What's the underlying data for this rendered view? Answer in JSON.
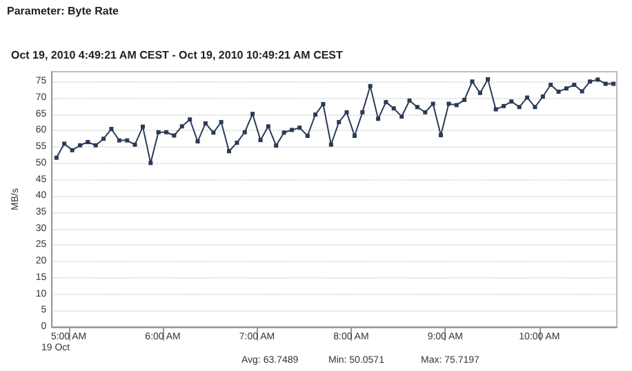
{
  "chart_data": {
    "type": "line",
    "title": "Oct 19, 2010 4:49:21 AM CEST - Oct 19, 2010 10:49:21 AM CEST",
    "subtitle": "Parameter: Byte Rate",
    "ylabel": "MB/s",
    "annotations": [
      "19 Oct",
      "Avg: 63.7489",
      "Min: 50.0571",
      "Max: 75.7197"
    ],
    "x": [
      4.87,
      4.953,
      5.037,
      5.12,
      5.203,
      5.287,
      5.37,
      5.453,
      5.537,
      5.62,
      5.703,
      5.787,
      5.87,
      5.953,
      6.037,
      6.12,
      6.203,
      6.287,
      6.37,
      6.453,
      6.537,
      6.62,
      6.703,
      6.787,
      6.87,
      6.953,
      7.037,
      7.12,
      7.203,
      7.287,
      7.37,
      7.453,
      7.537,
      7.62,
      7.703,
      7.787,
      7.87,
      7.953,
      8.037,
      8.12,
      8.203,
      8.287,
      8.37,
      8.453,
      8.537,
      8.62,
      8.703,
      8.787,
      8.87,
      8.953,
      9.037,
      9.12,
      9.203,
      9.287,
      9.37,
      9.453,
      9.537,
      9.62,
      9.703,
      9.787,
      9.87,
      9.953,
      10.037,
      10.12,
      10.203,
      10.287,
      10.37,
      10.453,
      10.537,
      10.62,
      10.703,
      10.787
    ],
    "series": [
      {
        "color": "#2b3a55",
        "values": [
          51.7,
          56.0,
          54.0,
          55.5,
          56.5,
          55.5,
          57.5,
          60.5,
          57.0,
          57.0,
          55.7,
          61.2,
          50.1,
          59.5,
          59.5,
          58.5,
          61.3,
          63.4,
          56.7,
          62.2,
          59.4,
          62.6,
          53.7,
          56.3,
          59.5,
          65.1,
          57.1,
          61.3,
          55.4,
          59.4,
          60.2,
          60.9,
          58.4,
          64.9,
          68.1,
          55.7,
          62.6,
          65.6,
          58.4,
          65.6,
          73.6,
          63.6,
          68.7,
          66.8,
          64.3,
          69.2,
          67.2,
          65.6,
          68.2,
          58.6,
          68.2,
          67.8,
          69.4,
          75.0,
          71.5,
          75.7,
          66.5,
          67.5,
          68.9,
          67.2,
          70.1,
          67.2,
          70.4,
          74.0,
          71.9,
          72.9,
          74.0,
          72.0,
          75.0,
          75.6,
          74.3,
          74.3
        ]
      }
    ],
    "xlim": [
      4.8225,
      10.8225
    ],
    "xticks": [
      {
        "value": 5,
        "label": "5:00 AM"
      },
      {
        "value": 6,
        "label": "6:00 AM"
      },
      {
        "value": 7,
        "label": "7:00 AM"
      },
      {
        "value": 8,
        "label": "8:00 AM"
      },
      {
        "value": 9,
        "label": "9:00 AM"
      },
      {
        "value": 10,
        "label": "10:00 AM"
      }
    ],
    "ylim": [
      0,
      78
    ],
    "yticks": [
      0,
      5,
      10,
      15,
      20,
      25,
      30,
      35,
      40,
      45,
      50,
      55,
      60,
      65,
      70,
      75
    ],
    "grid": "y",
    "marker": "square",
    "line_style": "solid"
  }
}
